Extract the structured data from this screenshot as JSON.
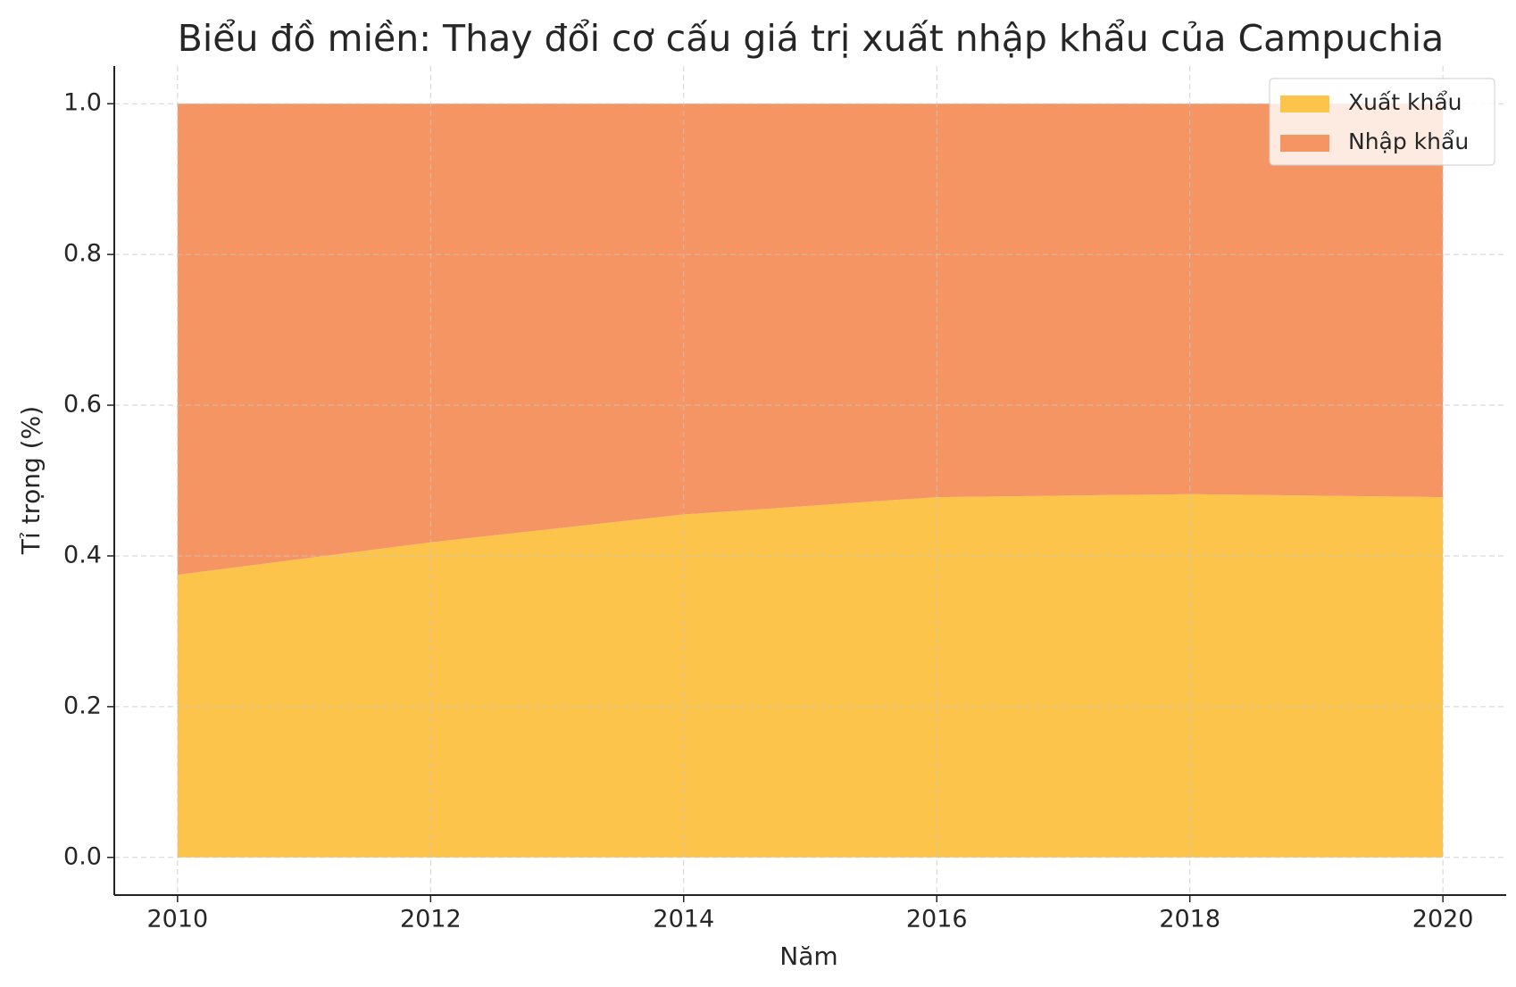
{
  "chart_data": {
    "type": "stacked_area",
    "title": "Biểu đồ miền: Thay đổi cơ cấu giá trị xuất nhập khẩu của Campuchia",
    "x_label": "Năm",
    "y_label": "Tỉ trọng (%)",
    "x": [
      2010,
      2012,
      2014,
      2016,
      2018,
      2020
    ],
    "series": [
      {
        "name": "Xuất khẩu",
        "color": "#fdc44b",
        "values": [
          0.375,
          0.418,
          0.455,
          0.478,
          0.482,
          0.478
        ]
      },
      {
        "name": "Nhập khẩu",
        "color": "#f59563",
        "values": [
          0.625,
          0.582,
          0.545,
          0.522,
          0.518,
          0.522
        ]
      }
    ],
    "xlim": [
      2009.5,
      2020.5
    ],
    "ylim": [
      -0.05,
      1.05
    ],
    "xticks": [
      2010,
      2012,
      2014,
      2016,
      2018,
      2020
    ],
    "yticks": [
      {
        "value": 0,
        "label": "0.0"
      },
      0.2,
      0.4,
      0.6,
      0.8,
      {
        "value": 1,
        "label": "1.0"
      }
    ],
    "grid": true,
    "legend": "upper right"
  }
}
